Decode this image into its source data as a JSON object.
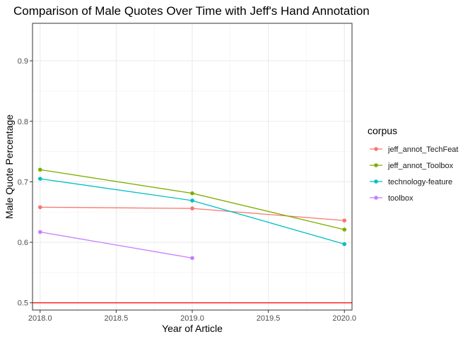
{
  "chart_data": {
    "type": "line",
    "title": "Comparison of Male Quotes Over Time with Jeff's Hand Annotation",
    "xlabel": "Year of Article",
    "ylabel": "Male Quote Percentage",
    "xlim": [
      1997.95,
      2020.05
    ],
    "ylim": [
      0.488,
      0.962
    ],
    "x_ticks": [
      2018.0,
      2018.5,
      2019.0,
      2019.5,
      2020.0
    ],
    "x_tick_labels": [
      "2018.0",
      "2018.5",
      "2019.0",
      "2019.5",
      "2020.0"
    ],
    "y_ticks": [
      0.5,
      0.6,
      0.7,
      0.8,
      0.9
    ],
    "y_tick_labels": [
      "0.5",
      "0.6",
      "0.7",
      "0.8",
      "0.9"
    ],
    "grid": true,
    "legend": {
      "title": "corpus",
      "position": "right"
    },
    "reference_line": {
      "y": 0.5,
      "color": "#ff0000"
    },
    "series": [
      {
        "name": "jeff_annot_TechFeat",
        "color": "#F8766D",
        "x": [
          2018,
          2019,
          2020
        ],
        "y": [
          0.658,
          0.656,
          0.636
        ]
      },
      {
        "name": "jeff_annot_Toolbox",
        "color": "#7CAE00",
        "x": [
          2018,
          2019,
          2020
        ],
        "y": [
          0.72,
          0.681,
          0.621
        ]
      },
      {
        "name": "technology-feature",
        "color": "#00BFC4",
        "x": [
          2018,
          2019,
          2020
        ],
        "y": [
          0.705,
          0.669,
          0.597
        ]
      },
      {
        "name": "toolbox",
        "color": "#C77CFF",
        "x": [
          2018,
          2019
        ],
        "y": [
          0.617,
          0.574
        ]
      }
    ]
  }
}
